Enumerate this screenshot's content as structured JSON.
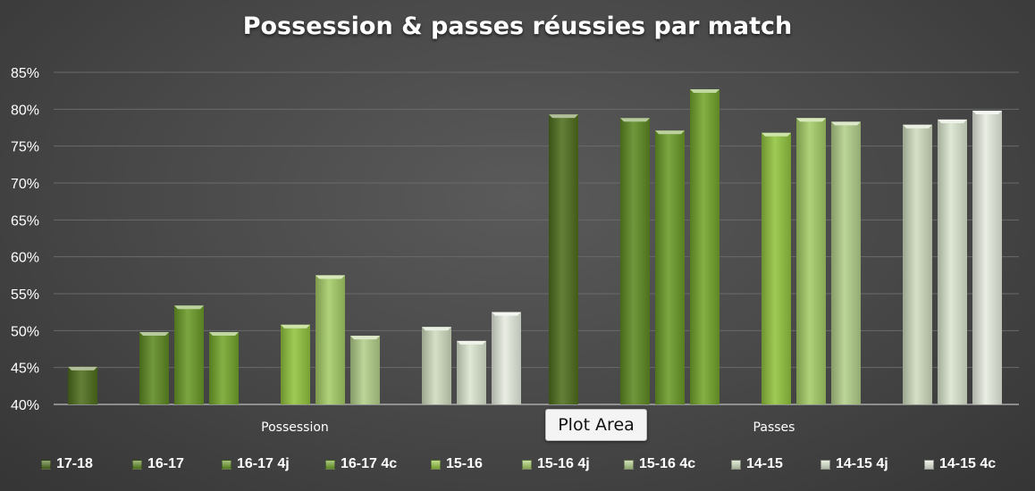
{
  "chart_data": {
    "type": "bar",
    "title": "Possession & passes réussies par match",
    "categories": [
      "Possession",
      "Passes"
    ],
    "yticks": [
      "40%",
      "45%",
      "50%",
      "55%",
      "60%",
      "65%",
      "70%",
      "75%",
      "80%",
      "85%"
    ],
    "ylim": [
      40,
      85
    ],
    "grid": true,
    "legend_position": "bottom",
    "series": [
      {
        "name": "17-18",
        "color": "#4f6f1d",
        "values": [
          45.1,
          79.3
        ]
      },
      {
        "name": "16-17",
        "color": "#5e8a22",
        "values": [
          49.8,
          78.8
        ]
      },
      {
        "name": "16-17 4j",
        "color": "#6a9a27",
        "values": [
          53.4,
          77.1
        ]
      },
      {
        "name": "16-17 4c",
        "color": "#73a52b",
        "values": [
          49.8,
          82.7
        ]
      },
      {
        "name": "15-16",
        "color": "#92c43e",
        "values": [
          50.8,
          76.8
        ]
      },
      {
        "name": "15-16 4j",
        "color": "#a5cc67",
        "values": [
          57.5,
          78.8
        ]
      },
      {
        "name": "15-16 4c",
        "color": "#b3cf8a",
        "values": [
          49.3,
          78.3
        ]
      },
      {
        "name": "14-15",
        "color": "#cfdcbe",
        "values": [
          50.5,
          77.9
        ]
      },
      {
        "name": "14-15 4j",
        "color": "#dbe5cf",
        "values": [
          48.6,
          78.6
        ]
      },
      {
        "name": "14-15 4c",
        "color": "#e6ecdf",
        "values": [
          52.5,
          79.8
        ]
      }
    ]
  },
  "tooltip": {
    "text": "Plot Area"
  }
}
